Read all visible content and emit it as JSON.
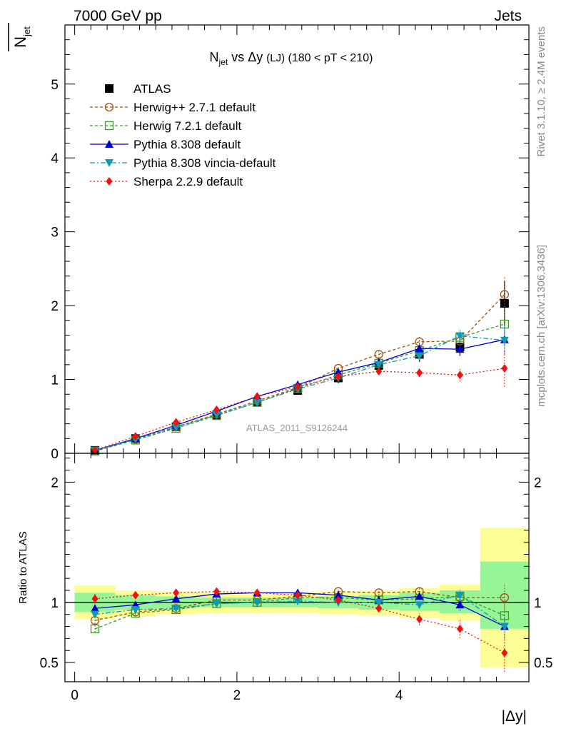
{
  "header": {
    "left": "7000 GeV pp",
    "right": "Jets",
    "ylabel_main": "N",
    "ylabel_main_sub": "jet",
    "ylabel_ratio": "Ratio to ATLAS",
    "xlabel": "|Δy|",
    "title_main": "N",
    "title_sub": "jet",
    "title_rest": " vs Δy ",
    "title_small": "(LJ)",
    "title_tail": " (180 < pT < 210)",
    "side_top": "Rivet 3.1.10, ≥ 2.4M events",
    "side_bottom": "mcplots.cern.ch [arXiv:1306.3436]",
    "analysis": "ATLAS_2011_S9126244"
  },
  "colors": {
    "atlas": "#000000",
    "herwigpp": "#a0500a",
    "herwig7": "#3c9a1c",
    "pythia": "#0000cc",
    "vincia": "#0c9ab6",
    "sherpa": "#ee1111",
    "band_yellow": "#fdfd96",
    "band_green": "#96f596"
  },
  "chart_data": [
    {
      "type": "line",
      "panel": "main",
      "xlim": [
        -0.12,
        5.6
      ],
      "ylim": [
        0,
        5.8
      ],
      "yticks": [
        0,
        1,
        2,
        3,
        4,
        5
      ],
      "ytick_labels": [
        "0",
        "1",
        "2",
        "3",
        "4",
        "5"
      ],
      "legend_position": "top-left",
      "x": [
        0.25,
        0.75,
        1.25,
        1.75,
        2.25,
        2.75,
        3.25,
        3.75,
        4.25,
        4.75,
        5.3
      ],
      "data": {
        "name": "ATLAS",
        "values": [
          0.04,
          0.2,
          0.36,
          0.52,
          0.69,
          0.85,
          1.02,
          1.19,
          1.34,
          1.44,
          2.03
        ],
        "errors": [
          0.01,
          0.02,
          0.03,
          0.03,
          0.04,
          0.05,
          0.07,
          0.08,
          0.1,
          0.12,
          0.3
        ]
      },
      "series": [
        {
          "name": "Herwig++ 2.7.1 default",
          "key": "herwigpp",
          "marker": "circle-open",
          "dash": "4,3",
          "values": [
            0.035,
            0.19,
            0.36,
            0.53,
            0.71,
            0.89,
            1.15,
            1.34,
            1.51,
            1.52,
            2.15
          ],
          "errors": [
            0.005,
            0.01,
            0.01,
            0.02,
            0.02,
            0.03,
            0.04,
            0.05,
            0.07,
            0.1,
            0.25
          ]
        },
        {
          "name": "Herwig 7.2.1 default",
          "key": "herwig7",
          "marker": "square-open",
          "dash": "4,3",
          "values": [
            0.03,
            0.18,
            0.34,
            0.51,
            0.69,
            0.88,
            1.06,
            1.22,
            1.39,
            1.57,
            1.75
          ],
          "errors": [
            0.005,
            0.01,
            0.01,
            0.02,
            0.02,
            0.03,
            0.04,
            0.05,
            0.06,
            0.09,
            0.2
          ]
        },
        {
          "name": "Pythia 8.308 default",
          "key": "pythia",
          "marker": "triangle-up",
          "dash": "",
          "values": [
            0.038,
            0.2,
            0.38,
            0.57,
            0.77,
            0.93,
            1.1,
            1.23,
            1.42,
            1.41,
            1.54
          ],
          "errors": [
            0.005,
            0.01,
            0.01,
            0.02,
            0.02,
            0.03,
            0.04,
            0.05,
            0.06,
            0.08,
            0.2
          ]
        },
        {
          "name": "Pythia 8.308 vincia-default",
          "key": "vincia",
          "marker": "triangle-down",
          "dash": "7,3,2,3",
          "values": [
            0.036,
            0.19,
            0.35,
            0.52,
            0.69,
            0.87,
            1.02,
            1.2,
            1.32,
            1.59,
            1.53
          ],
          "errors": [
            0.005,
            0.01,
            0.01,
            0.02,
            0.02,
            0.03,
            0.04,
            0.05,
            0.06,
            0.09,
            0.2
          ]
        },
        {
          "name": "Sherpa 2.2.9 default",
          "key": "sherpa",
          "marker": "diamond",
          "dash": "2,3",
          "values": [
            0.042,
            0.23,
            0.42,
            0.59,
            0.77,
            0.9,
            1.04,
            1.11,
            1.09,
            1.06,
            1.15
          ],
          "errors": [
            0.005,
            0.01,
            0.02,
            0.02,
            0.03,
            0.03,
            0.04,
            0.05,
            0.06,
            0.09,
            0.25
          ]
        }
      ]
    },
    {
      "type": "line",
      "panel": "ratio",
      "ylabel": "Ratio to ATLAS",
      "xlabel": "|Δy|",
      "xlim": [
        -0.12,
        5.6
      ],
      "ylim": [
        0.34,
        2.24
      ],
      "xticks": [
        0,
        2,
        4
      ],
      "xtick_labels": [
        "0",
        "2",
        "4"
      ],
      "yticks": [
        0.5,
        1,
        2
      ],
      "ytick_labels": [
        "0.5",
        "1",
        "2"
      ],
      "reference_line": 1,
      "bins": [
        [
          0,
          0.5
        ],
        [
          0.5,
          1
        ],
        [
          1,
          1.5
        ],
        [
          1.5,
          2
        ],
        [
          2,
          2.5
        ],
        [
          2.5,
          3
        ],
        [
          3,
          3.5
        ],
        [
          3.5,
          4
        ],
        [
          4,
          4.5
        ],
        [
          4.5,
          5
        ],
        [
          5,
          5.6
        ]
      ],
      "band_yellow": [
        [
          0.86,
          1.14
        ],
        [
          0.88,
          1.1
        ],
        [
          0.9,
          1.09
        ],
        [
          0.91,
          1.08
        ],
        [
          0.91,
          1.08
        ],
        [
          0.91,
          1.08
        ],
        [
          0.9,
          1.09
        ],
        [
          0.89,
          1.1
        ],
        [
          0.87,
          1.12
        ],
        [
          0.85,
          1.15
        ],
        [
          0.46,
          1.62
        ]
      ],
      "band_green": [
        [
          0.92,
          1.08
        ],
        [
          0.94,
          1.06
        ],
        [
          0.95,
          1.05
        ],
        [
          0.96,
          1.04
        ],
        [
          0.96,
          1.04
        ],
        [
          0.96,
          1.04
        ],
        [
          0.95,
          1.05
        ],
        [
          0.94,
          1.06
        ],
        [
          0.93,
          1.08
        ],
        [
          0.91,
          1.1
        ],
        [
          0.78,
          1.34
        ]
      ],
      "x": [
        0.25,
        0.75,
        1.25,
        1.75,
        2.25,
        2.75,
        3.25,
        3.75,
        4.25,
        4.75,
        5.3
      ],
      "series": [
        {
          "name": "Herwig++ 2.7.1 default",
          "key": "herwigpp",
          "marker": "circle-open",
          "dash": "4,3",
          "values": [
            0.85,
            0.92,
            0.95,
            1.02,
            1.02,
            1.05,
            1.09,
            1.08,
            1.09,
            1.04,
            1.04
          ],
          "errors": [
            0.03,
            0.02,
            0.02,
            0.02,
            0.02,
            0.02,
            0.02,
            0.02,
            0.03,
            0.05,
            0.12
          ]
        },
        {
          "name": "Herwig 7.2.1 default",
          "key": "herwig7",
          "marker": "square-open",
          "dash": "4,3",
          "values": [
            0.78,
            0.91,
            0.94,
            0.99,
            1.0,
            1.04,
            1.04,
            1.02,
            1.03,
            1.05,
            0.89
          ],
          "errors": [
            0.03,
            0.02,
            0.02,
            0.02,
            0.02,
            0.02,
            0.02,
            0.02,
            0.03,
            0.05,
            0.1
          ]
        },
        {
          "name": "Pythia 8.308 default",
          "key": "pythia",
          "marker": "triangle-up",
          "dash": "",
          "values": [
            0.95,
            0.98,
            1.03,
            1.07,
            1.08,
            1.08,
            1.06,
            1.02,
            1.05,
            0.98,
            0.8
          ],
          "errors": [
            0.03,
            0.02,
            0.02,
            0.02,
            0.02,
            0.02,
            0.02,
            0.02,
            0.03,
            0.05,
            0.1
          ]
        },
        {
          "name": "Pythia 8.308 vincia-default",
          "key": "vincia",
          "marker": "triangle-down",
          "dash": "7,3,2,3",
          "values": [
            0.9,
            0.94,
            0.95,
            0.99,
            1.0,
            1.01,
            1.0,
            1.0,
            0.98,
            1.06,
            0.8
          ],
          "errors": [
            0.03,
            0.02,
            0.02,
            0.02,
            0.02,
            0.02,
            0.02,
            0.02,
            0.03,
            0.05,
            0.1
          ]
        },
        {
          "name": "Sherpa 2.2.9 default",
          "key": "sherpa",
          "marker": "diamond",
          "dash": "2,3",
          "values": [
            1.03,
            1.06,
            1.08,
            1.09,
            1.08,
            1.06,
            1.02,
            0.95,
            0.86,
            0.78,
            0.58
          ],
          "errors": [
            0.04,
            0.02,
            0.02,
            0.02,
            0.02,
            0.02,
            0.02,
            0.03,
            0.05,
            0.08,
            0.16
          ]
        }
      ]
    }
  ]
}
